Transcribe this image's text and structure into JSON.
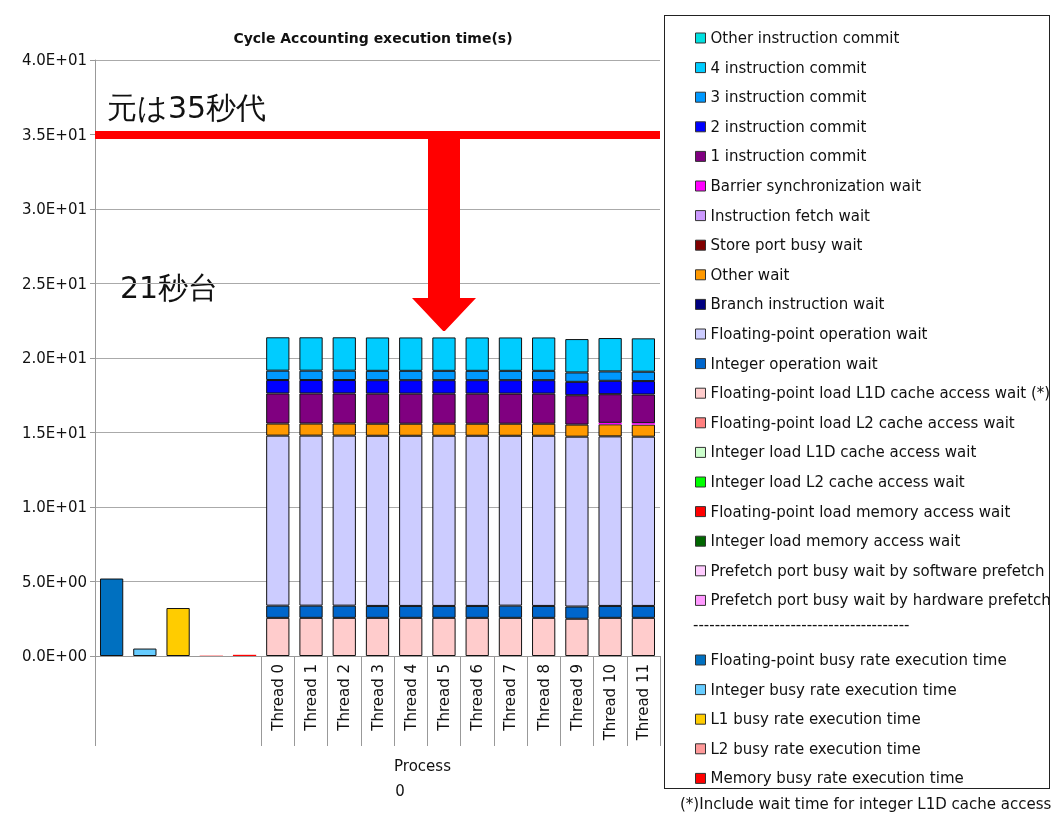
{
  "chart_data": {
    "type": "bar",
    "title": "Cycle Accounting execution time(s)",
    "xlabel": "Process",
    "stacked": true,
    "grid": "y",
    "legend": "right",
    "categories": [
      null,
      null,
      null,
      null,
      null,
      "Thread 0",
      "Thread 1",
      "Thread 2",
      "Thread 3",
      "Thread 4",
      "Thread 5",
      "Thread 6",
      "Thread 7",
      "Thread 8",
      "Thread 9",
      "Thread 10",
      "Thread 11"
    ],
    "ylim": [
      0,
      40
    ],
    "yticks": [
      {
        "value": 0,
        "label": "0.0E+00"
      },
      {
        "value": 5,
        "label": "5.0E+00"
      },
      {
        "value": 10,
        "label": "1.0E+01"
      },
      {
        "value": 15,
        "label": "1.5E+01"
      },
      {
        "value": 20,
        "label": "2.0E+01"
      },
      {
        "value": 25,
        "label": "2.5E+01"
      },
      {
        "value": 30,
        "label": "3.0E+01"
      },
      {
        "value": 35,
        "label": "3.5E+01"
      },
      {
        "value": 40,
        "label": "4.0E+01"
      }
    ],
    "ref_lines": [
      {
        "axis": "y",
        "value": 35,
        "label": "元は35秒代",
        "color": "#ff0000"
      }
    ],
    "annotations": [
      "21秒台",
      "0",
      "----------------------------------------",
      "(*)Include wait time for integer L1D cache access"
    ],
    "series": [
      {
        "name": "Prefetch port busy wait by hardware prefetch",
        "color": "#ff99ff",
        "values": [
          null,
          null,
          null,
          null,
          null,
          0,
          0,
          0,
          0,
          0,
          0,
          0,
          0,
          0,
          0,
          0,
          0
        ]
      },
      {
        "name": "Prefetch port busy wait by software prefetch",
        "color": "#ffccff",
        "values": [
          null,
          null,
          null,
          null,
          null,
          0,
          0,
          0,
          0,
          0,
          0,
          0,
          0,
          0,
          0,
          0,
          0
        ]
      },
      {
        "name": "Integer load memory access wait",
        "color": "#006600",
        "values": [
          null,
          null,
          null,
          null,
          null,
          0,
          0,
          0,
          0,
          0,
          0,
          0,
          0,
          0,
          0,
          0,
          0
        ]
      },
      {
        "name": "Floating-point load memory access wait",
        "color": "#ff0000",
        "values": [
          null,
          null,
          null,
          null,
          null,
          0,
          0,
          0,
          0,
          0,
          0,
          0,
          0,
          0,
          0,
          0,
          0
        ]
      },
      {
        "name": "Integer load L2 cache access wait",
        "color": "#00ff00",
        "values": [
          null,
          null,
          null,
          null,
          null,
          0,
          0,
          0,
          0,
          0,
          0,
          0,
          0,
          0,
          0,
          0,
          0
        ]
      },
      {
        "name": "Integer load L1D cache access wait",
        "color": "#ccffcc",
        "values": [
          null,
          null,
          null,
          null,
          null,
          0,
          0,
          0,
          0,
          0,
          0,
          0,
          0,
          0,
          0,
          0,
          0
        ]
      },
      {
        "name": "Floating-point load L2 cache access wait",
        "color": "#ff8080",
        "values": [
          null,
          null,
          null,
          null,
          null,
          0,
          0,
          0,
          0,
          0,
          0,
          0,
          0,
          0,
          0,
          0,
          0
        ]
      },
      {
        "name": "Floating-point load L1D cache access wait (*)",
        "color": "#ffcccc",
        "values": [
          null,
          null,
          null,
          null,
          null,
          2.56,
          2.56,
          2.56,
          2.56,
          2.56,
          2.56,
          2.56,
          2.56,
          2.56,
          2.5,
          2.56,
          2.56
        ]
      },
      {
        "name": "Integer operation wait",
        "color": "#0066cc",
        "values": [
          null,
          null,
          null,
          null,
          null,
          0.82,
          0.82,
          0.82,
          0.8,
          0.8,
          0.8,
          0.8,
          0.82,
          0.8,
          0.82,
          0.8,
          0.8
        ]
      },
      {
        "name": "Floating-point operation wait",
        "color": "#ccccff",
        "values": [
          null,
          null,
          null,
          null,
          null,
          11.41,
          11.41,
          11.41,
          11.42,
          11.42,
          11.42,
          11.42,
          11.4,
          11.42,
          11.4,
          11.38,
          11.36
        ]
      },
      {
        "name": "Branch instruction wait",
        "color": "#000080",
        "values": [
          null,
          null,
          null,
          null,
          null,
          0,
          0,
          0,
          0,
          0,
          0,
          0,
          0,
          0,
          0,
          0,
          0
        ]
      },
      {
        "name": "Other wait",
        "color": "#ff9900",
        "values": [
          null,
          null,
          null,
          null,
          null,
          0.81,
          0.81,
          0.81,
          0.81,
          0.81,
          0.81,
          0.81,
          0.81,
          0.81,
          0.81,
          0.81,
          0.81
        ]
      },
      {
        "name": "Store port busy wait",
        "color": "#800000",
        "values": [
          null,
          null,
          null,
          null,
          null,
          0,
          0,
          0,
          0,
          0,
          0,
          0,
          0,
          0,
          0,
          0,
          0
        ]
      },
      {
        "name": "Instruction fetch wait",
        "color": "#cc99ff",
        "values": [
          null,
          null,
          null,
          null,
          null,
          0,
          0,
          0,
          0,
          0,
          0,
          0,
          0,
          0,
          0,
          0,
          0
        ]
      },
      {
        "name": "Barrier synchronization wait",
        "color": "#ff00ff",
        "values": [
          null,
          null,
          null,
          null,
          null,
          0,
          0,
          0,
          0,
          0,
          0,
          0,
          0,
          0,
          0,
          0.1,
          0.1
        ]
      },
      {
        "name": "1 instruction commit",
        "color": "#800080",
        "values": [
          null,
          null,
          null,
          null,
          null,
          2.02,
          2.02,
          2.02,
          2.02,
          2.02,
          2.02,
          2.02,
          2.02,
          2.02,
          1.97,
          1.92,
          1.92
        ]
      },
      {
        "name": "2 instruction commit",
        "color": "#0000ff",
        "values": [
          null,
          null,
          null,
          null,
          null,
          0.9,
          0.9,
          0.9,
          0.9,
          0.9,
          0.9,
          0.9,
          0.9,
          0.9,
          0.9,
          0.9,
          0.9
        ]
      },
      {
        "name": "3 instruction commit",
        "color": "#0099ff",
        "values": [
          null,
          null,
          null,
          null,
          null,
          0.63,
          0.63,
          0.63,
          0.63,
          0.63,
          0.63,
          0.63,
          0.63,
          0.63,
          0.63,
          0.63,
          0.63
        ]
      },
      {
        "name": "4 instruction commit",
        "color": "#00ccff",
        "values": [
          null,
          null,
          null,
          null,
          null,
          2.24,
          2.24,
          2.24,
          2.24,
          2.24,
          2.24,
          2.24,
          2.24,
          2.24,
          2.24,
          2.24,
          2.24
        ]
      },
      {
        "name": "Other instruction commit",
        "color": "#00e0e0",
        "values": [
          null,
          null,
          null,
          null,
          null,
          0,
          0,
          0,
          0,
          0,
          0,
          0,
          0,
          0,
          0,
          0,
          0
        ]
      },
      {
        "name": "Floating-point busy rate execution time",
        "color": "#0070c0",
        "values": [
          5.2,
          null,
          null,
          null,
          null,
          null,
          null,
          null,
          null,
          null,
          null,
          null,
          null,
          null,
          null,
          null,
          null
        ]
      },
      {
        "name": "Integer busy rate execution time",
        "color": "#66ccff",
        "values": [
          null,
          0.5,
          null,
          null,
          null,
          null,
          null,
          null,
          null,
          null,
          null,
          null,
          null,
          null,
          null,
          null,
          null
        ]
      },
      {
        "name": "L1 busy rate execution time",
        "color": "#ffcc00",
        "values": [
          null,
          null,
          3.22,
          null,
          null,
          null,
          null,
          null,
          null,
          null,
          null,
          null,
          null,
          null,
          null,
          null,
          null
        ]
      },
      {
        "name": "L2 busy rate execution time",
        "color": "#ff9999",
        "values": [
          null,
          null,
          null,
          0.05,
          null,
          null,
          null,
          null,
          null,
          null,
          null,
          null,
          null,
          null,
          null,
          null,
          null
        ]
      },
      {
        "name": "Memory busy rate execution time",
        "color": "#ff0000",
        "values": [
          null,
          null,
          null,
          null,
          0.08,
          null,
          null,
          null,
          null,
          null,
          null,
          null,
          null,
          null,
          null,
          null,
          null
        ]
      }
    ]
  }
}
